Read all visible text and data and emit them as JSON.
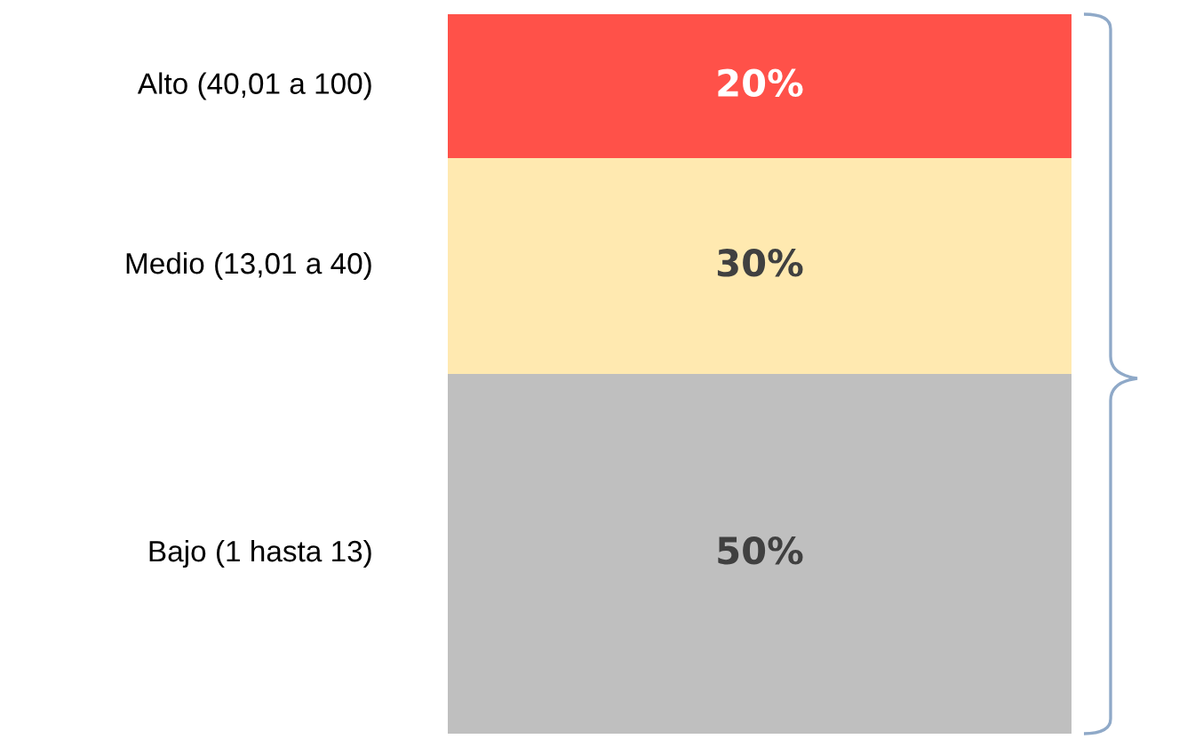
{
  "chart_data": {
    "type": "bar",
    "stacked": true,
    "categories": [
      null
    ],
    "series": [
      {
        "name": "Bajo (1 hasta 13)",
        "color": "#bfbfbf",
        "values": [
          50
        ],
        "value_labels": [
          "50%"
        ]
      },
      {
        "name": "Medio (13,01 a 40)",
        "color": "#ffe9b0",
        "values": [
          30
        ],
        "value_labels": [
          "30%"
        ]
      },
      {
        "name": "Alto (40,01 a 100)",
        "color": "#ff5149",
        "values": [
          20
        ],
        "value_labels": [
          "20%"
        ]
      }
    ],
    "legend": false
  }
}
